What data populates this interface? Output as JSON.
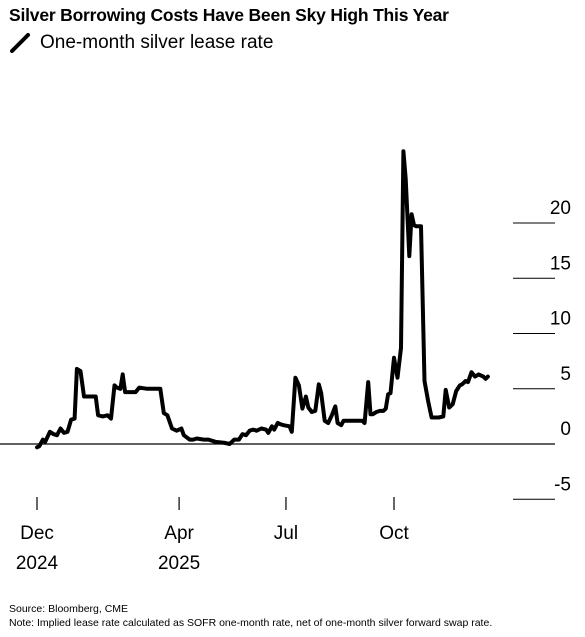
{
  "title": "Silver Borrowing Costs Have Been Sky High This Year",
  "footer": {
    "source": "Source: Bloomberg, CME",
    "note": "Note: Implied lease rate calculated as SOFR one-month rate, net of one-month silver forward swap rate."
  },
  "chart_data": {
    "type": "line",
    "title": "Silver Borrowing Costs Have Been Sky High This Year",
    "xlabel": "",
    "ylabel": "",
    "legend": "top-left",
    "grid": false,
    "ylim": [
      -5,
      20
    ],
    "yticks": [
      20,
      15,
      10,
      5,
      0,
      -5
    ],
    "xticks": [
      {
        "date": "2024-12-01",
        "label": "Dec",
        "sublabel": "2024"
      },
      {
        "date": "2025-04-01",
        "label": "Apr",
        "sublabel": "2025"
      },
      {
        "date": "2025-07-01",
        "label": "Jul",
        "sublabel": ""
      },
      {
        "date": "2025-10-01",
        "label": "Oct",
        "sublabel": ""
      }
    ],
    "color": "#000000",
    "series": [
      {
        "name": "One-month silver lease rate",
        "points": [
          [
            "2024-12-01",
            -0.3
          ],
          [
            "2024-12-03",
            -0.2
          ],
          [
            "2024-12-06",
            0.4
          ],
          [
            "2024-12-08",
            0.2
          ],
          [
            "2024-12-12",
            1.1
          ],
          [
            "2024-12-15",
            0.9
          ],
          [
            "2024-12-18",
            0.8
          ],
          [
            "2024-12-21",
            1.4
          ],
          [
            "2024-12-24",
            1.0
          ],
          [
            "2024-12-27",
            1.1
          ],
          [
            "2024-12-30",
            2.2
          ],
          [
            "2025-01-02",
            2.3
          ],
          [
            "2025-01-04",
            6.8
          ],
          [
            "2025-01-07",
            6.6
          ],
          [
            "2025-01-10",
            4.3
          ],
          [
            "2025-01-15",
            4.3
          ],
          [
            "2025-01-20",
            4.3
          ],
          [
            "2025-01-22",
            2.6
          ],
          [
            "2025-01-26",
            2.5
          ],
          [
            "2025-01-30",
            2.6
          ],
          [
            "2025-02-02",
            2.3
          ],
          [
            "2025-02-05",
            5.3
          ],
          [
            "2025-02-07",
            5.1
          ],
          [
            "2025-02-10",
            5.0
          ],
          [
            "2025-02-12",
            6.3
          ],
          [
            "2025-02-14",
            4.7
          ],
          [
            "2025-02-18",
            4.7
          ],
          [
            "2025-02-23",
            4.7
          ],
          [
            "2025-02-26",
            5.1
          ],
          [
            "2025-03-05",
            5.0
          ],
          [
            "2025-03-10",
            5.0
          ],
          [
            "2025-03-16",
            5.0
          ],
          [
            "2025-03-19",
            2.8
          ],
          [
            "2025-03-22",
            2.6
          ],
          [
            "2025-03-26",
            1.4
          ],
          [
            "2025-03-30",
            1.2
          ],
          [
            "2025-04-03",
            1.4
          ],
          [
            "2025-04-05",
            0.8
          ],
          [
            "2025-04-10",
            0.4
          ],
          [
            "2025-04-13",
            0.4
          ],
          [
            "2025-04-16",
            0.5
          ],
          [
            "2025-04-22",
            0.4
          ],
          [
            "2025-04-26",
            0.4
          ],
          [
            "2025-05-02",
            0.2
          ],
          [
            "2025-05-10",
            0.1
          ],
          [
            "2025-05-14",
            0.0
          ],
          [
            "2025-05-18",
            0.4
          ],
          [
            "2025-05-22",
            0.4
          ],
          [
            "2025-05-25",
            0.9
          ],
          [
            "2025-05-28",
            0.8
          ],
          [
            "2025-05-31",
            1.2
          ],
          [
            "2025-06-03",
            1.3
          ],
          [
            "2025-06-06",
            1.2
          ],
          [
            "2025-06-10",
            1.4
          ],
          [
            "2025-06-14",
            1.3
          ],
          [
            "2025-06-16",
            1.0
          ],
          [
            "2025-06-19",
            1.6
          ],
          [
            "2025-06-21",
            1.3
          ],
          [
            "2025-06-24",
            1.9
          ],
          [
            "2025-06-26",
            1.8
          ],
          [
            "2025-06-29",
            1.7
          ],
          [
            "2025-07-04",
            1.6
          ],
          [
            "2025-07-06",
            1.1
          ],
          [
            "2025-07-09",
            6.0
          ],
          [
            "2025-07-12",
            5.3
          ],
          [
            "2025-07-15",
            3.2
          ],
          [
            "2025-07-18",
            4.3
          ],
          [
            "2025-07-20",
            3.3
          ],
          [
            "2025-07-23",
            2.9
          ],
          [
            "2025-07-26",
            3.0
          ],
          [
            "2025-07-29",
            5.4
          ],
          [
            "2025-07-31",
            4.6
          ],
          [
            "2025-08-03",
            2.1
          ],
          [
            "2025-08-06",
            1.9
          ],
          [
            "2025-08-09",
            2.6
          ],
          [
            "2025-08-12",
            3.4
          ],
          [
            "2025-08-14",
            1.9
          ],
          [
            "2025-08-17",
            1.7
          ],
          [
            "2025-08-19",
            2.1
          ],
          [
            "2025-08-24",
            2.1
          ],
          [
            "2025-08-30",
            2.1
          ],
          [
            "2025-09-04",
            2.1
          ],
          [
            "2025-09-06",
            1.9
          ],
          [
            "2025-09-09",
            5.6
          ],
          [
            "2025-09-11",
            2.7
          ],
          [
            "2025-09-13",
            2.7
          ],
          [
            "2025-09-16",
            2.9
          ],
          [
            "2025-09-19",
            3.0
          ],
          [
            "2025-09-22",
            3.0
          ],
          [
            "2025-09-24",
            3.2
          ],
          [
            "2025-09-26",
            4.5
          ],
          [
            "2025-09-28",
            4.6
          ],
          [
            "2025-10-01",
            7.8
          ],
          [
            "2025-10-04",
            6.0
          ],
          [
            "2025-10-07",
            8.7
          ],
          [
            "2025-10-09",
            26.5
          ],
          [
            "2025-10-11",
            24.0
          ],
          [
            "2025-10-14",
            17.0
          ],
          [
            "2025-10-16",
            20.8
          ],
          [
            "2025-10-18",
            19.8
          ],
          [
            "2025-10-20",
            19.7
          ],
          [
            "2025-10-24",
            19.7
          ],
          [
            "2025-10-27",
            5.7
          ],
          [
            "2025-10-30",
            3.9
          ],
          [
            "2025-11-02",
            2.4
          ],
          [
            "2025-11-08",
            2.4
          ],
          [
            "2025-11-12",
            2.5
          ],
          [
            "2025-11-14",
            4.9
          ],
          [
            "2025-11-17",
            3.3
          ],
          [
            "2025-11-20",
            3.6
          ],
          [
            "2025-11-23",
            4.8
          ],
          [
            "2025-11-26",
            5.3
          ],
          [
            "2025-11-28",
            5.4
          ],
          [
            "2025-12-01",
            5.7
          ],
          [
            "2025-12-03",
            5.6
          ],
          [
            "2025-12-06",
            6.5
          ],
          [
            "2025-12-09",
            6.1
          ],
          [
            "2025-12-12",
            6.3
          ],
          [
            "2025-12-16",
            6.1
          ],
          [
            "2025-12-18",
            5.9
          ],
          [
            "2025-12-20",
            6.1
          ]
        ]
      }
    ]
  }
}
